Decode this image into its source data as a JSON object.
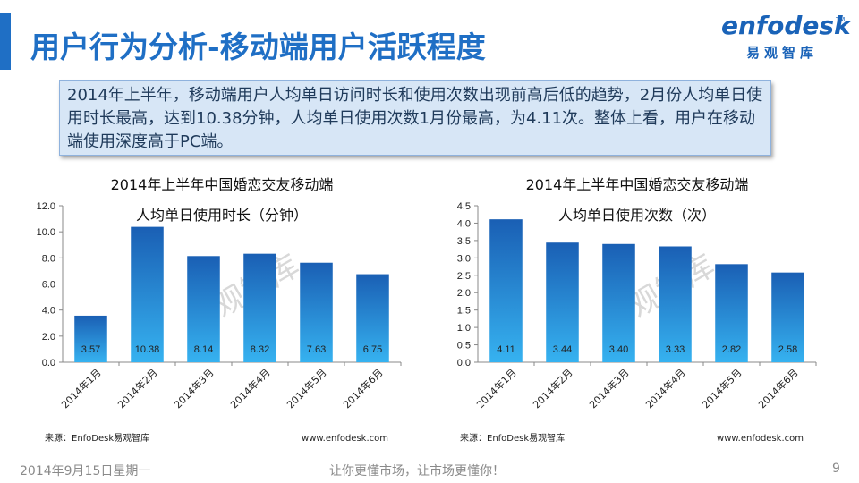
{
  "header": {
    "title": "用户行为分析-移动端用户活跃程度",
    "logo_text": "enfodesk",
    "logo_tm": "TM",
    "logo_sub": "易观智库"
  },
  "summary": "2014年上半年，移动端用户人均单日访问时长和使用次数出现前高后低的趋势，2月份人均单日使用时长最高，达到10.38分钟，人均单日使用次数1月份最高，为4.11次。整体上看，用户在移动端使用深度高于PC端。",
  "colors": {
    "accent": "#1f6fc5",
    "bar_top": "#1a5fb4",
    "bar_bottom": "#36b2f0",
    "summary_bg": "#d7e6f6"
  },
  "chart_data": [
    {
      "type": "bar",
      "title": "2014年上半年中国婚恋交友移动端",
      "subtitle": "人均单日使用时长（分钟）",
      "categories": [
        "2014年1月",
        "2014年2月",
        "2014年3月",
        "2014年4月",
        "2014年5月",
        "2014年6月"
      ],
      "values": [
        3.57,
        10.38,
        8.14,
        8.32,
        7.63,
        6.75
      ],
      "value_labels": [
        "3.57",
        "10.38",
        "8.14",
        "8.32",
        "7.63",
        "6.75"
      ],
      "ylim": [
        0,
        12
      ],
      "yticks": [
        "0.0",
        "2.0",
        "4.0",
        "6.0",
        "8.0",
        "10.0",
        "12.0"
      ],
      "grid": false,
      "watermark": "易观智库",
      "source": "来源：EnfoDesk易观智库",
      "url": "www.enfodesk.com"
    },
    {
      "type": "bar",
      "title": "2014年上半年中国婚恋交友移动端",
      "subtitle": "人均单日使用次数（次）",
      "categories": [
        "2014年1月",
        "2014年2月",
        "2014年3月",
        "2014年4月",
        "2014年5月",
        "2014年6月"
      ],
      "values": [
        4.11,
        3.44,
        3.4,
        3.33,
        2.82,
        2.58
      ],
      "value_labels": [
        "4.11",
        "3.44",
        "3.40",
        "3.33",
        "2.82",
        "2.58"
      ],
      "ylim": [
        0,
        4.5
      ],
      "yticks": [
        "0.0",
        "0.5",
        "1.0",
        "1.5",
        "2.0",
        "2.5",
        "3.0",
        "3.5",
        "4.0",
        "4.5"
      ],
      "grid": false,
      "watermark": "易观智库",
      "source": "来源：EnfoDesk易观智库",
      "url": "www.enfodesk.com"
    }
  ],
  "footer": {
    "date": "2014年9月15日星期一",
    "slogan": "让你更懂市场，让市场更懂你！",
    "page": "9"
  }
}
